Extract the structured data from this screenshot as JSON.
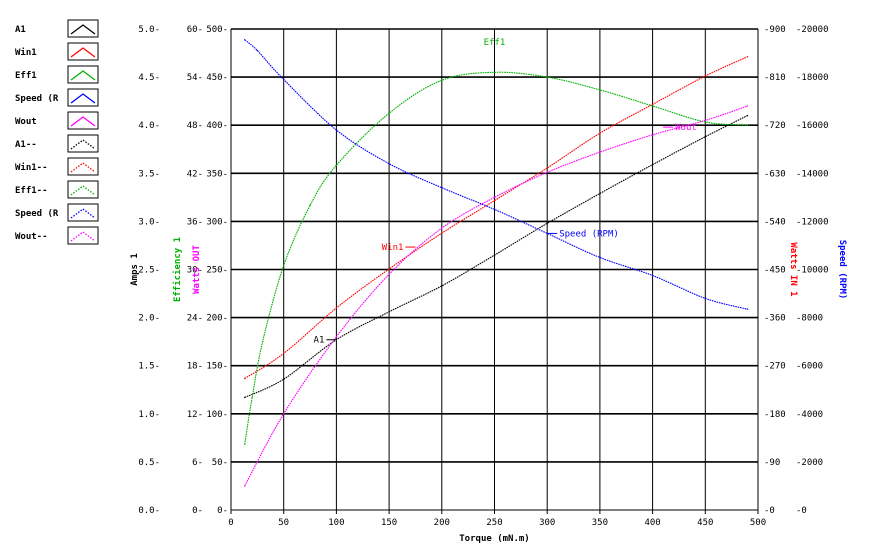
{
  "chart_data": {
    "type": "line",
    "xlabel": "Torque (mN.m)",
    "xlim": [
      0,
      500
    ],
    "x_ticks": [
      0,
      50,
      100,
      150,
      200,
      250,
      300,
      350,
      400,
      450,
      500
    ],
    "grid": "horizontal and vertical",
    "legend_position": "top-left, outside plot",
    "legend": [
      {
        "label": "A1",
        "color": "#000000",
        "style": "solid"
      },
      {
        "label": "Win1",
        "color": "#ff0000",
        "style": "solid"
      },
      {
        "label": "Eff1",
        "color": "#00b000",
        "style": "solid"
      },
      {
        "label": "Speed (R",
        "color": "#0000ff",
        "style": "solid"
      },
      {
        "label": "Wout",
        "color": "#ff00ff",
        "style": "solid"
      },
      {
        "label": "A1--",
        "color": "#000000",
        "style": "dotted"
      },
      {
        "label": "Win1--",
        "color": "#ff0000",
        "style": "dotted"
      },
      {
        "label": "Eff1--",
        "color": "#00b000",
        "style": "dotted"
      },
      {
        "label": "Speed (R",
        "color": "#0000ff",
        "style": "dotted"
      },
      {
        "label": "Wout--",
        "color": "#ff00ff",
        "style": "dotted"
      }
    ],
    "axes": [
      {
        "id": "amps",
        "side": "left",
        "label": "Amps 1",
        "color": "#000000",
        "range": [
          0,
          5
        ],
        "ticks": [
          "0.0",
          "0.5",
          "1.0",
          "1.5",
          "2.0",
          "2.5",
          "3.0",
          "3.5",
          "4.0",
          "4.5",
          "5.0"
        ]
      },
      {
        "id": "eff",
        "side": "left",
        "label": "Efficiency 1",
        "color": "#00b000",
        "range": [
          0,
          60
        ],
        "ticks": [
          "0",
          "6",
          "12",
          "18",
          "24",
          "30",
          "36",
          "42",
          "48",
          "54",
          "60"
        ]
      },
      {
        "id": "wout",
        "side": "left",
        "label": "Watts OUT",
        "color": "#ff00ff",
        "range": [
          0,
          500
        ],
        "ticks": [
          "0",
          "50",
          "100",
          "150",
          "200",
          "250",
          "300",
          "350",
          "400",
          "450",
          "500"
        ]
      },
      {
        "id": "win",
        "side": "right",
        "label": "Watts IN 1",
        "color": "#ff0000",
        "range": [
          0,
          900
        ],
        "ticks": [
          "0",
          "90",
          "180",
          "270",
          "360",
          "450",
          "540",
          "630",
          "720",
          "810",
          "900"
        ]
      },
      {
        "id": "speed",
        "side": "right",
        "label": "Speed (RPM)",
        "color": "#0000ff",
        "range": [
          0,
          20000
        ],
        "ticks": [
          "0",
          "2000",
          "4000",
          "6000",
          "8000",
          "10000",
          "12000",
          "14000",
          "16000",
          "18000",
          "20000"
        ]
      }
    ],
    "series": [
      {
        "name": "A1",
        "axis": "amps",
        "color": "#000000",
        "x": [
          13,
          50,
          100,
          150,
          200,
          250,
          300,
          350,
          400,
          450,
          490
        ],
        "y": [
          1.17,
          1.36,
          1.77,
          2.06,
          2.33,
          2.65,
          2.98,
          3.29,
          3.59,
          3.88,
          4.1
        ]
      },
      {
        "name": "Win1",
        "axis": "win",
        "color": "#ff0000",
        "x": [
          13,
          50,
          100,
          150,
          200,
          250,
          300,
          350,
          400,
          450,
          490
        ],
        "y": [
          246,
          293,
          378,
          451,
          518,
          579,
          640,
          705,
          759,
          812,
          848
        ]
      },
      {
        "name": "Eff1",
        "axis": "eff",
        "color": "#00b000",
        "x": [
          13,
          20,
          30,
          50,
          75,
          100,
          150,
          200,
          250,
          300,
          350,
          400,
          450,
          490
        ],
        "y": [
          8.2,
          14,
          21,
          30.5,
          38,
          43,
          49.5,
          53.6,
          54.6,
          54,
          52.4,
          50.4,
          48.4,
          48
        ]
      },
      {
        "name": "Speed (RPM)",
        "axis": "speed",
        "color": "#0000ff",
        "x": [
          13,
          25,
          50,
          100,
          150,
          200,
          250,
          300,
          350,
          400,
          450,
          490
        ],
        "y": [
          19550,
          19100,
          17900,
          15800,
          14400,
          13400,
          12500,
          11500,
          10500,
          9750,
          8800,
          8350
        ]
      },
      {
        "name": "Wout",
        "axis": "wout",
        "color": "#ff00ff",
        "x": [
          13,
          50,
          100,
          150,
          200,
          250,
          300,
          350,
          400,
          450,
          490
        ],
        "y": [
          25,
          100,
          180,
          245,
          293,
          325,
          351,
          372,
          390,
          405,
          420
        ]
      }
    ],
    "annotations": [
      {
        "text": "A1",
        "series": "A1",
        "x": 100,
        "y": 1.77,
        "anchor": "end"
      },
      {
        "text": "Win1",
        "series": "Win1",
        "x": 175,
        "y": 492,
        "anchor": "end"
      },
      {
        "text": "Eff1",
        "series": "Eff1",
        "x": 250,
        "y": 57.5,
        "anchor": "middle"
      },
      {
        "text": "Speed (RPM)",
        "series": "Speed (RPM)",
        "x": 300,
        "y": 11500,
        "anchor": "start"
      },
      {
        "text": "Wout",
        "series": "Wout",
        "x": 410,
        "y": 398,
        "anchor": "start"
      }
    ]
  }
}
